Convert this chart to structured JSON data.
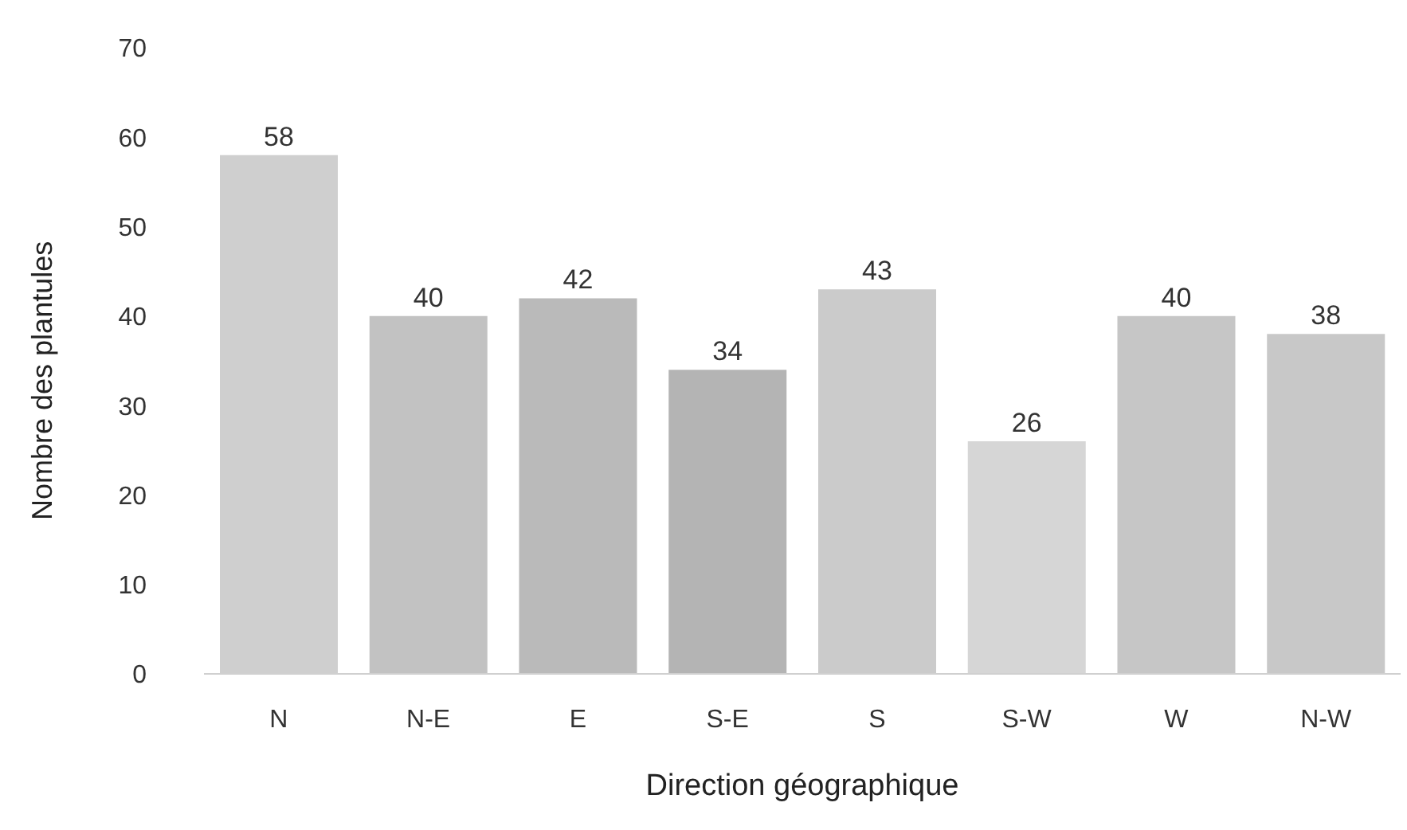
{
  "chart_data": {
    "type": "bar",
    "xlabel": "Direction géographique",
    "ylabel": "Nombre des plantules",
    "categories": [
      "N",
      "N-E",
      "E",
      "S-E",
      "S",
      "S-W",
      "W",
      "N-W"
    ],
    "values": [
      58,
      40,
      42,
      34,
      43,
      26,
      40,
      38
    ],
    "colors": [
      "#cfcfcf",
      "#c2c2c2",
      "#bababa",
      "#b4b4b4",
      "#cbcbcb",
      "#d6d6d6",
      "#c6c6c6",
      "#c8c8c8"
    ],
    "ylim": [
      0,
      70
    ],
    "yticks": [
      0,
      10,
      20,
      30,
      40,
      50,
      60,
      70
    ],
    "data_labels": true,
    "grid": false,
    "legend": false
  }
}
